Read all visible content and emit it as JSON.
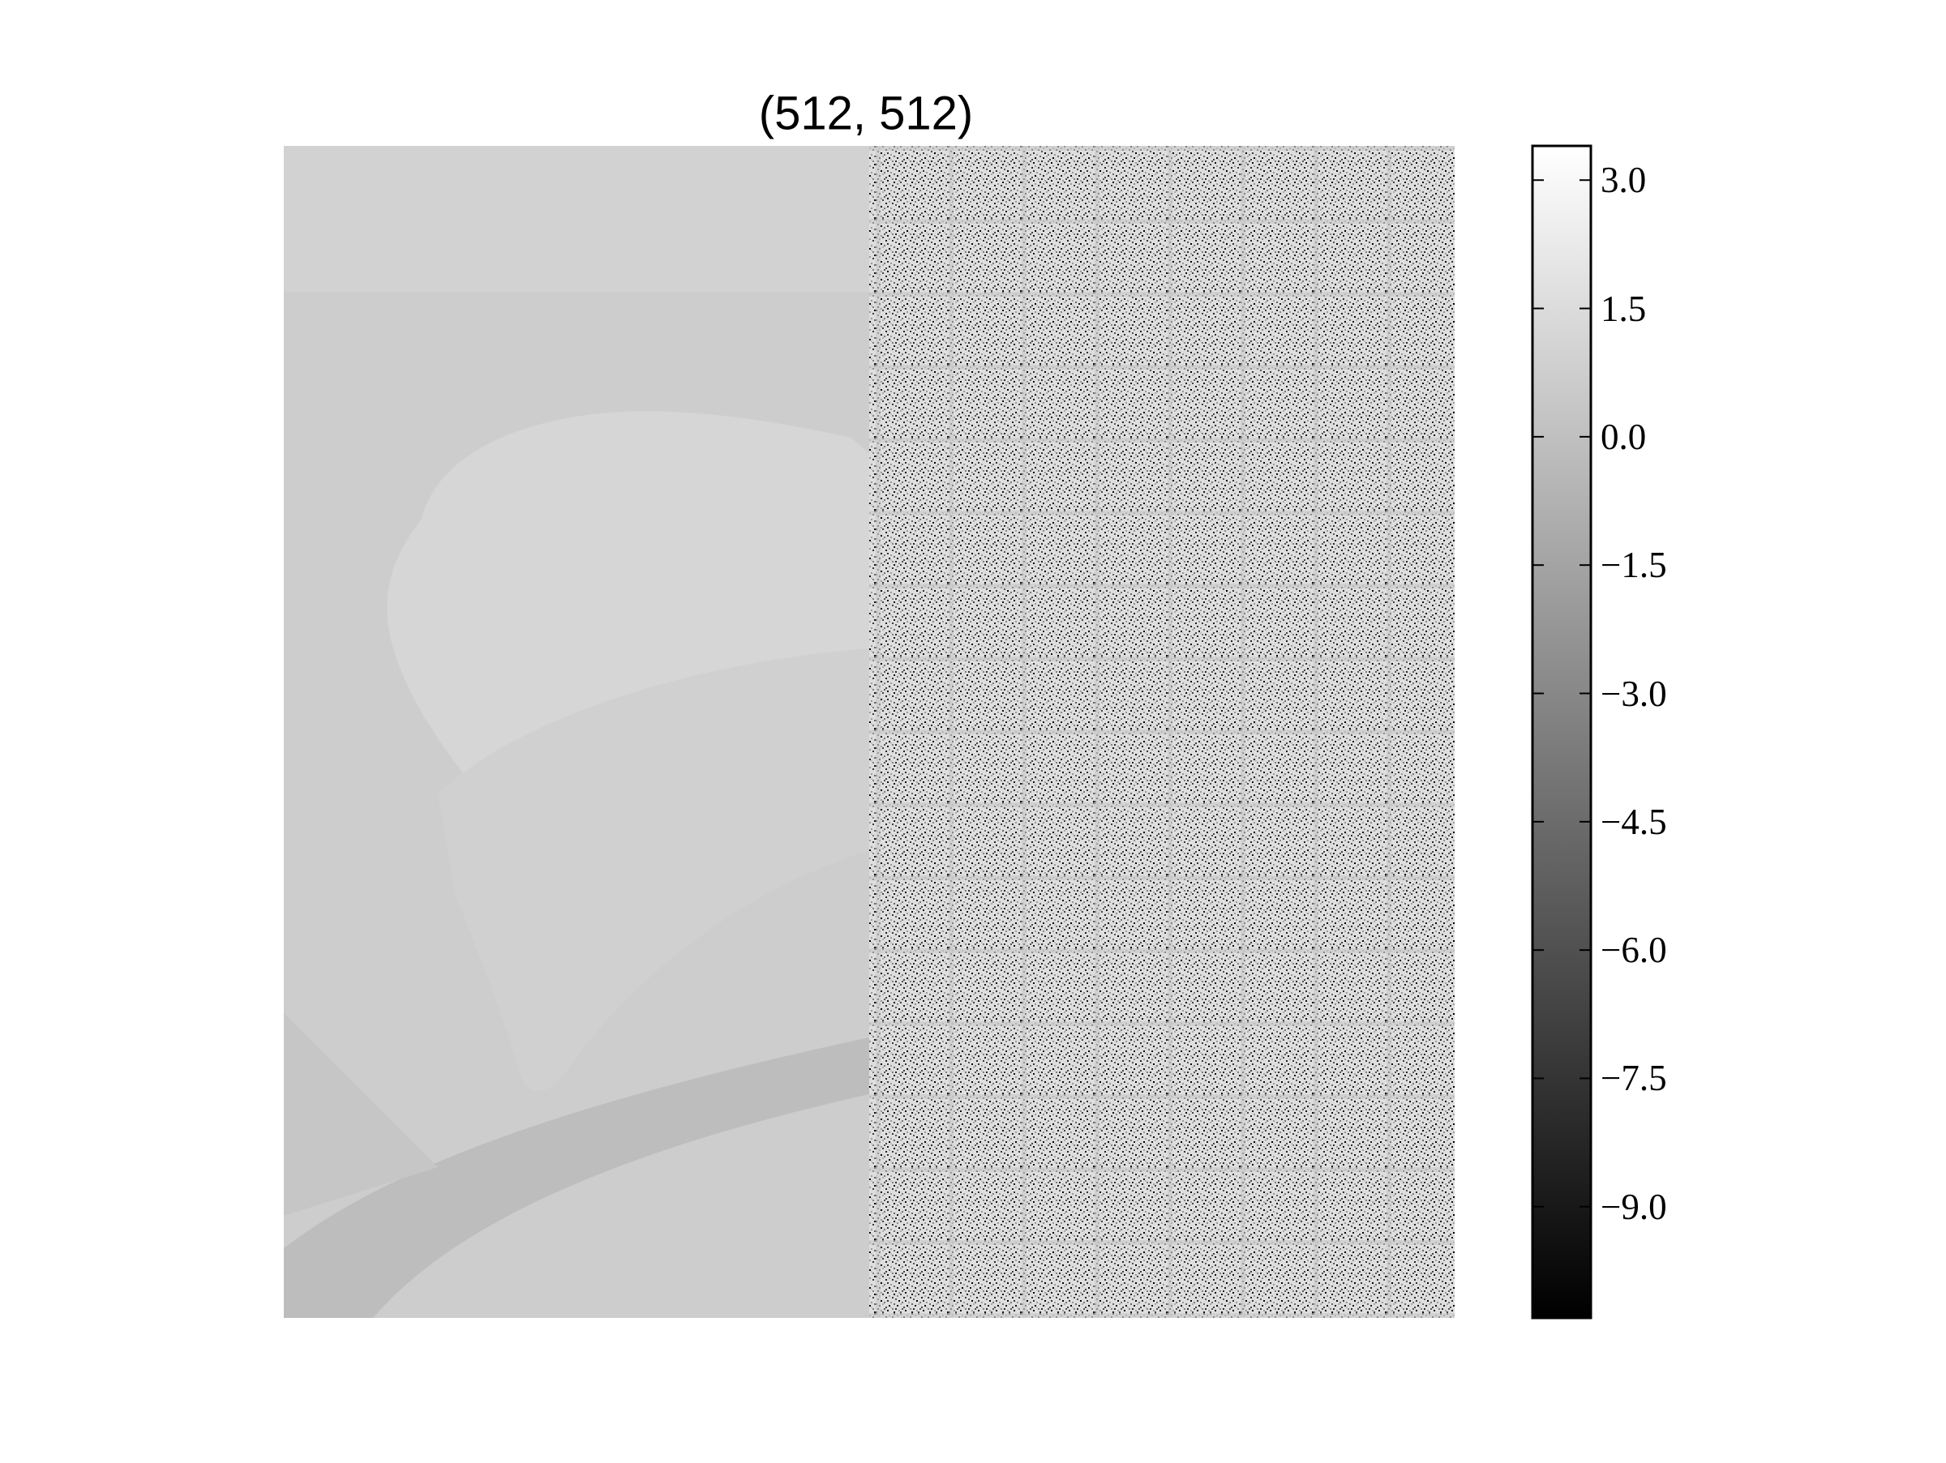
{
  "chart_data": {
    "type": "heatmap",
    "title": "(512, 512)",
    "image_shape": [
      512,
      512
    ],
    "colormap": "gray",
    "panels": [
      {
        "name": "left",
        "description_value_range": [
          0.5,
          0.9
        ]
      },
      {
        "name": "right",
        "description_value_range": [
          -10.0,
          3.4
        ]
      }
    ],
    "colorbar": {
      "vmin": -10.3,
      "vmax": 3.4,
      "ticks": [
        3.0,
        1.5,
        0.0,
        -1.5,
        -3.0,
        -4.5,
        -6.0,
        -7.5,
        -9.0
      ],
      "tick_labels": [
        "3.0",
        "1.5",
        "0.0",
        "−1.5",
        "−3.0",
        "−4.5",
        "−6.0",
        "−7.5",
        "−9.0"
      ]
    },
    "xlabel": "",
    "ylabel": "",
    "grid": false,
    "axes_visible": false
  }
}
